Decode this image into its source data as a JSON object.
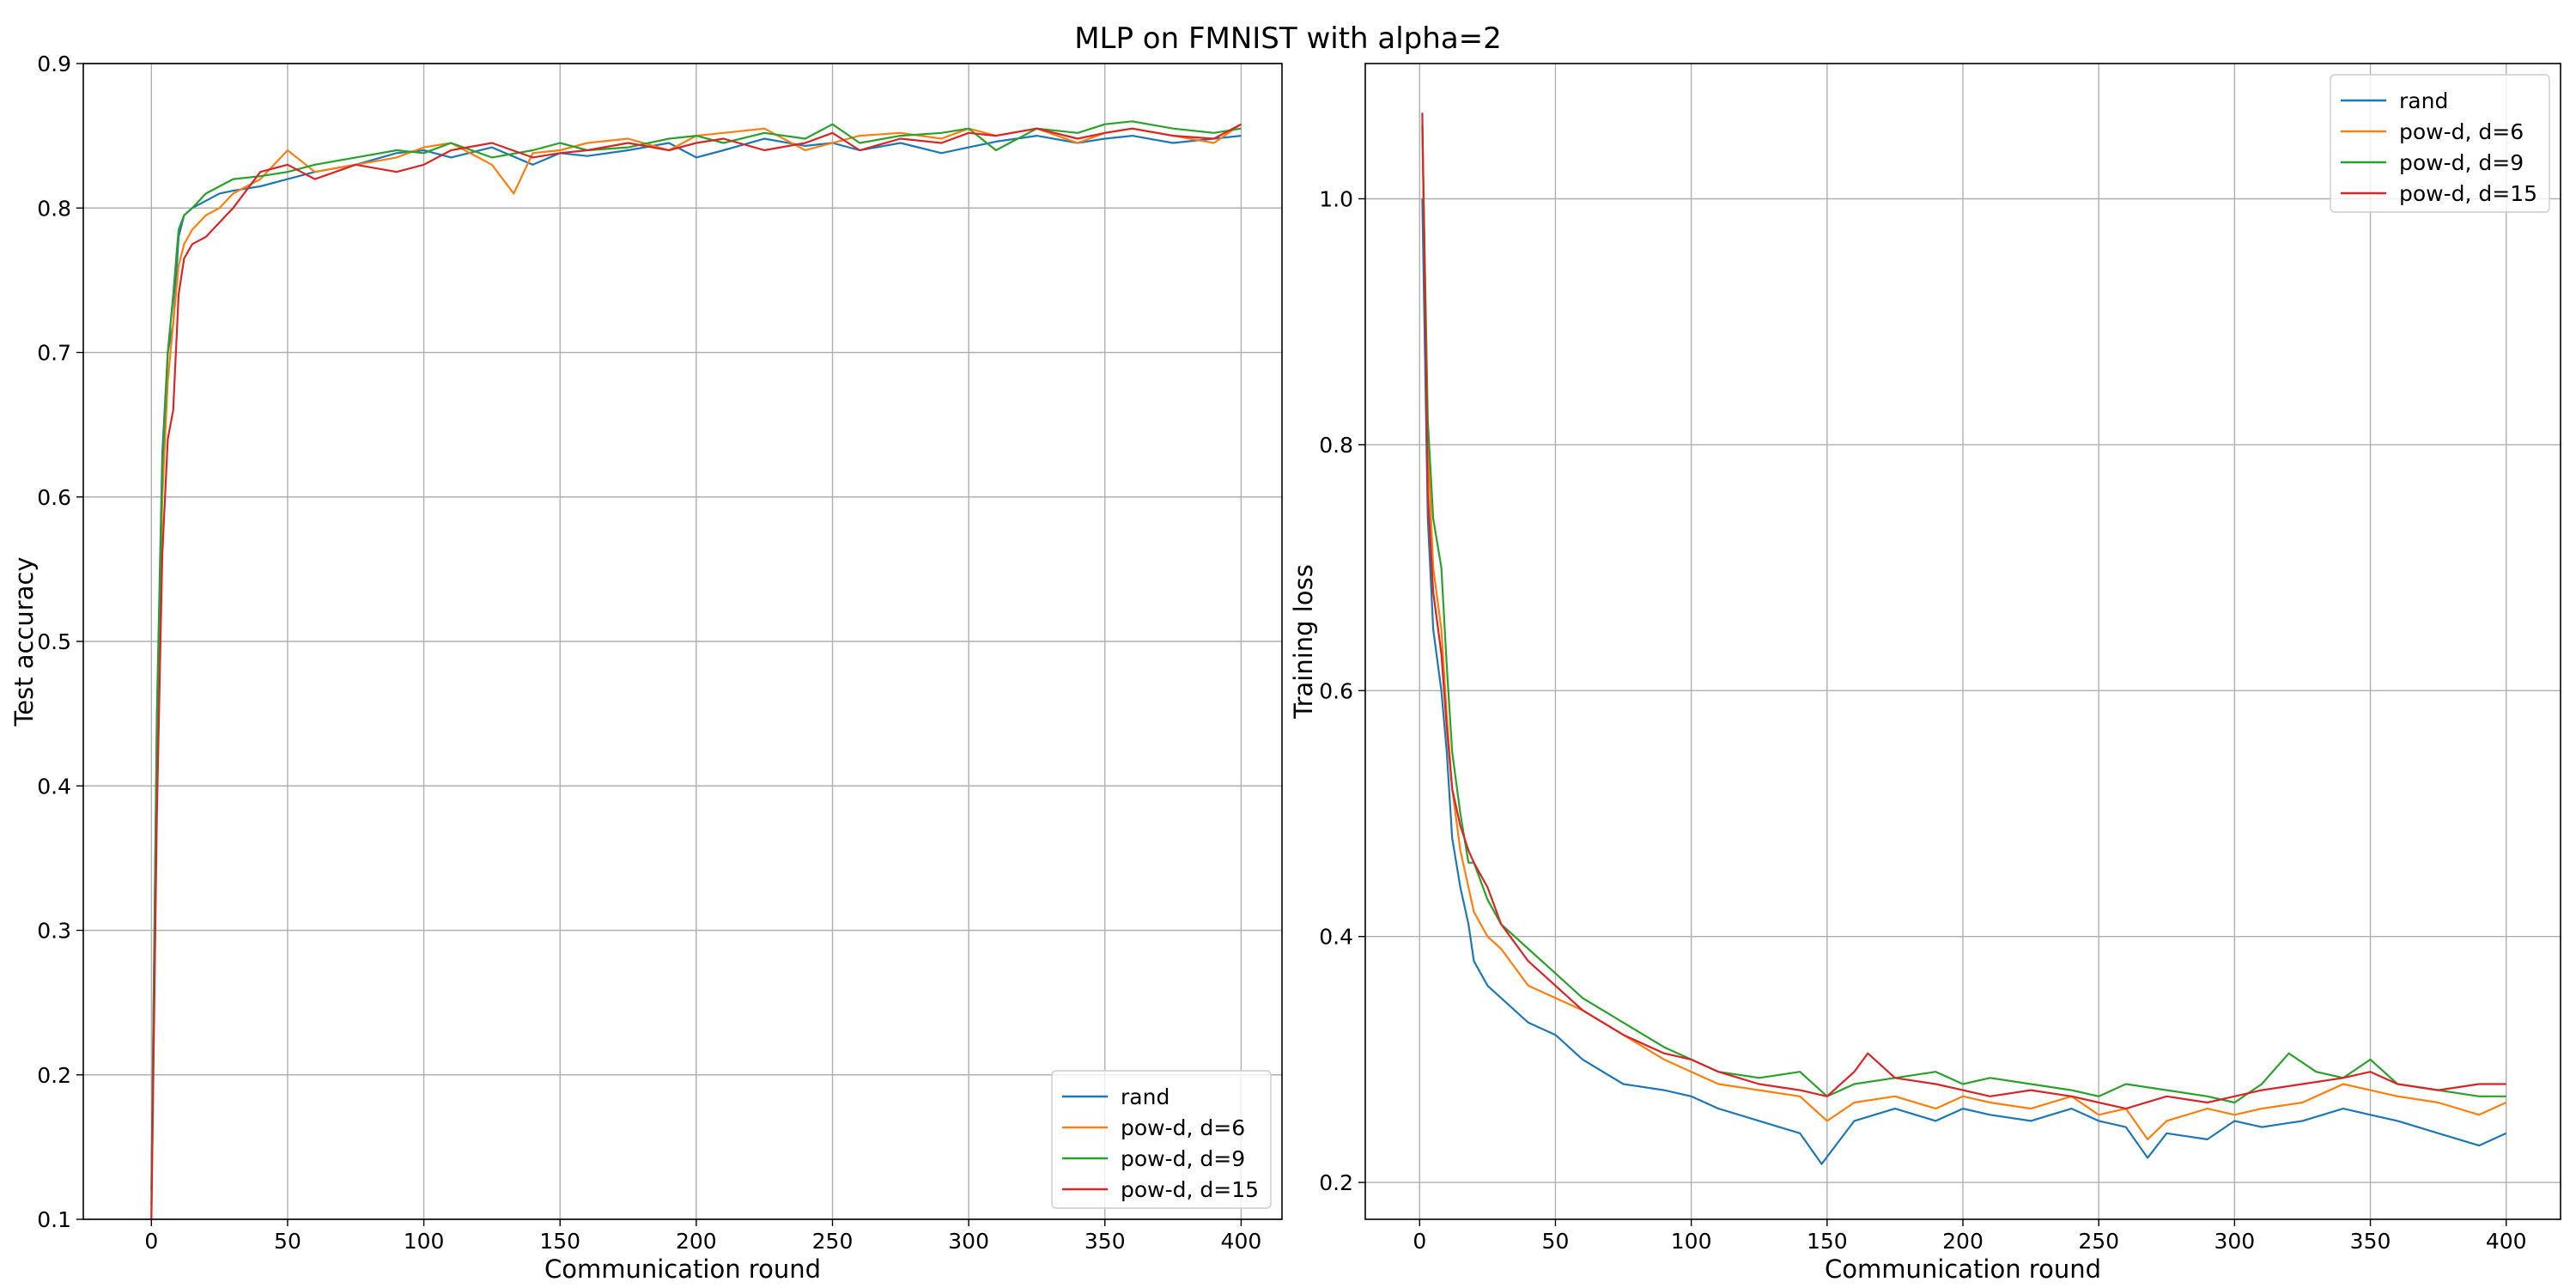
{
  "figure_title": "MLP on FMNIST with alpha=2",
  "colors": {
    "rand": "#1f77b4",
    "pow_d_6": "#ff7f0e",
    "pow_d_9": "#2ca02c",
    "pow_d_15": "#d62728"
  },
  "chart_data": [
    {
      "type": "line",
      "title": "",
      "xlabel": "Communication round",
      "ylabel": "Test accuracy",
      "xlim": [
        -25,
        415
      ],
      "ylim": [
        0.1,
        0.9
      ],
      "xticks": [
        0,
        50,
        100,
        150,
        200,
        250,
        300,
        350,
        400
      ],
      "yticks": [
        0.1,
        0.2,
        0.3,
        0.4,
        0.5,
        0.6,
        0.7,
        0.8,
        0.9
      ],
      "ytick_labels": [
        "0.1",
        "0.2",
        "0.3",
        "0.4",
        "0.5",
        "0.6",
        "0.7",
        "0.8",
        "0.9"
      ],
      "grid": true,
      "legend_position": "lower-right",
      "series": [
        {
          "name": "rand",
          "color": "#1f77b4",
          "x": [
            0,
            2,
            4,
            6,
            8,
            10,
            12,
            15,
            20,
            25,
            30,
            40,
            50,
            60,
            75,
            90,
            100,
            110,
            125,
            140,
            150,
            160,
            175,
            190,
            200,
            210,
            225,
            240,
            250,
            260,
            275,
            290,
            300,
            310,
            325,
            340,
            350,
            360,
            375,
            390,
            400
          ],
          "y": [
            0.12,
            0.45,
            0.63,
            0.7,
            0.72,
            0.78,
            0.795,
            0.8,
            0.805,
            0.81,
            0.812,
            0.815,
            0.82,
            0.825,
            0.83,
            0.838,
            0.84,
            0.835,
            0.842,
            0.83,
            0.838,
            0.836,
            0.84,
            0.845,
            0.835,
            0.84,
            0.848,
            0.843,
            0.845,
            0.84,
            0.845,
            0.838,
            0.842,
            0.846,
            0.85,
            0.845,
            0.848,
            0.85,
            0.845,
            0.848,
            0.85
          ]
        },
        {
          "name": "pow-d, d=6",
          "color": "#ff7f0e",
          "x": [
            0,
            2,
            4,
            6,
            8,
            10,
            12,
            15,
            20,
            25,
            30,
            40,
            50,
            60,
            75,
            90,
            100,
            110,
            125,
            133,
            140,
            150,
            160,
            175,
            190,
            200,
            210,
            225,
            240,
            250,
            260,
            275,
            290,
            300,
            310,
            325,
            340,
            350,
            360,
            375,
            390,
            400
          ],
          "y": [
            0.1,
            0.42,
            0.6,
            0.68,
            0.72,
            0.76,
            0.775,
            0.785,
            0.795,
            0.8,
            0.81,
            0.82,
            0.84,
            0.825,
            0.83,
            0.835,
            0.842,
            0.845,
            0.83,
            0.81,
            0.838,
            0.84,
            0.845,
            0.848,
            0.84,
            0.85,
            0.852,
            0.855,
            0.84,
            0.845,
            0.85,
            0.852,
            0.848,
            0.855,
            0.85,
            0.855,
            0.845,
            0.852,
            0.855,
            0.85,
            0.845,
            0.858
          ]
        },
        {
          "name": "pow-d, d=9",
          "color": "#2ca02c",
          "x": [
            0,
            2,
            4,
            6,
            8,
            10,
            12,
            15,
            20,
            25,
            30,
            40,
            50,
            60,
            75,
            90,
            100,
            110,
            125,
            140,
            150,
            160,
            175,
            190,
            200,
            210,
            225,
            240,
            250,
            260,
            275,
            290,
            300,
            310,
            325,
            340,
            350,
            360,
            375,
            390,
            400
          ],
          "y": [
            0.11,
            0.44,
            0.62,
            0.7,
            0.74,
            0.785,
            0.795,
            0.8,
            0.81,
            0.815,
            0.82,
            0.822,
            0.825,
            0.83,
            0.835,
            0.84,
            0.838,
            0.845,
            0.835,
            0.84,
            0.845,
            0.84,
            0.842,
            0.848,
            0.85,
            0.845,
            0.852,
            0.848,
            0.858,
            0.845,
            0.85,
            0.852,
            0.855,
            0.84,
            0.855,
            0.852,
            0.858,
            0.86,
            0.855,
            0.852,
            0.855
          ]
        },
        {
          "name": "pow-d, d=15",
          "color": "#d62728",
          "x": [
            0,
            2,
            4,
            6,
            8,
            10,
            12,
            15,
            20,
            25,
            30,
            40,
            50,
            60,
            75,
            90,
            100,
            110,
            125,
            140,
            150,
            160,
            175,
            190,
            200,
            210,
            225,
            240,
            250,
            260,
            275,
            290,
            300,
            310,
            325,
            340,
            350,
            360,
            375,
            390,
            400
          ],
          "y": [
            0.1,
            0.38,
            0.56,
            0.64,
            0.66,
            0.74,
            0.765,
            0.775,
            0.78,
            0.79,
            0.8,
            0.825,
            0.83,
            0.82,
            0.83,
            0.825,
            0.83,
            0.84,
            0.845,
            0.835,
            0.838,
            0.84,
            0.845,
            0.84,
            0.845,
            0.848,
            0.84,
            0.845,
            0.852,
            0.84,
            0.848,
            0.845,
            0.852,
            0.85,
            0.855,
            0.848,
            0.852,
            0.855,
            0.85,
            0.848,
            0.858
          ]
        }
      ]
    },
    {
      "type": "line",
      "title": "",
      "xlabel": "Communication round",
      "ylabel": "Training loss",
      "xlim": [
        -20,
        420
      ],
      "ylim": [
        0.17,
        1.11
      ],
      "xticks": [
        0,
        50,
        100,
        150,
        200,
        250,
        300,
        350,
        400
      ],
      "yticks": [
        0.2,
        0.4,
        0.6,
        0.8,
        1.0
      ],
      "ytick_labels": [
        "0.2",
        "0.4",
        "0.6",
        "0.8",
        "1.0"
      ],
      "grid": true,
      "legend_position": "top-right",
      "series": [
        {
          "name": "rand",
          "color": "#1f77b4",
          "x": [
            1,
            3,
            5,
            8,
            10,
            12,
            15,
            18,
            20,
            25,
            30,
            40,
            50,
            60,
            75,
            90,
            100,
            110,
            125,
            140,
            148,
            160,
            175,
            190,
            200,
            210,
            225,
            240,
            250,
            260,
            268,
            275,
            290,
            300,
            310,
            325,
            340,
            350,
            360,
            375,
            390,
            400
          ],
          "y": [
            1.0,
            0.74,
            0.65,
            0.6,
            0.55,
            0.48,
            0.44,
            0.41,
            0.38,
            0.36,
            0.35,
            0.33,
            0.32,
            0.3,
            0.28,
            0.275,
            0.27,
            0.26,
            0.25,
            0.24,
            0.215,
            0.25,
            0.26,
            0.25,
            0.26,
            0.255,
            0.25,
            0.26,
            0.25,
            0.245,
            0.22,
            0.24,
            0.235,
            0.25,
            0.245,
            0.25,
            0.26,
            0.255,
            0.25,
            0.24,
            0.23,
            0.24
          ]
        },
        {
          "name": "pow-d, d=6",
          "color": "#ff7f0e",
          "x": [
            1,
            3,
            5,
            8,
            10,
            12,
            15,
            18,
            20,
            25,
            30,
            40,
            50,
            60,
            75,
            90,
            100,
            110,
            125,
            140,
            150,
            160,
            175,
            190,
            200,
            210,
            225,
            240,
            250,
            260,
            268,
            275,
            290,
            300,
            310,
            325,
            340,
            350,
            360,
            375,
            390,
            400
          ],
          "y": [
            1.06,
            0.8,
            0.7,
            0.65,
            0.58,
            0.52,
            0.47,
            0.44,
            0.42,
            0.4,
            0.39,
            0.36,
            0.35,
            0.34,
            0.32,
            0.3,
            0.29,
            0.28,
            0.275,
            0.27,
            0.25,
            0.265,
            0.27,
            0.26,
            0.27,
            0.265,
            0.26,
            0.27,
            0.255,
            0.26,
            0.235,
            0.25,
            0.26,
            0.255,
            0.26,
            0.265,
            0.28,
            0.275,
            0.27,
            0.265,
            0.255,
            0.265
          ]
        },
        {
          "name": "pow-d, d=9",
          "color": "#2ca02c",
          "x": [
            1,
            3,
            5,
            8,
            10,
            12,
            15,
            18,
            20,
            25,
            30,
            40,
            50,
            60,
            75,
            90,
            100,
            110,
            125,
            140,
            150,
            160,
            175,
            190,
            200,
            210,
            225,
            240,
            250,
            260,
            275,
            290,
            300,
            310,
            320,
            330,
            340,
            350,
            360,
            375,
            390,
            400
          ],
          "y": [
            1.06,
            0.82,
            0.74,
            0.7,
            0.62,
            0.55,
            0.5,
            0.46,
            0.46,
            0.43,
            0.41,
            0.39,
            0.37,
            0.35,
            0.33,
            0.31,
            0.3,
            0.29,
            0.285,
            0.29,
            0.27,
            0.28,
            0.285,
            0.29,
            0.28,
            0.285,
            0.28,
            0.275,
            0.27,
            0.28,
            0.275,
            0.27,
            0.265,
            0.28,
            0.305,
            0.29,
            0.285,
            0.3,
            0.28,
            0.275,
            0.27,
            0.27
          ]
        },
        {
          "name": "pow-d, d=15",
          "color": "#d62728",
          "x": [
            1,
            3,
            5,
            8,
            10,
            12,
            15,
            18,
            20,
            25,
            30,
            40,
            50,
            60,
            75,
            90,
            100,
            110,
            125,
            140,
            150,
            160,
            165,
            175,
            190,
            200,
            210,
            225,
            240,
            250,
            260,
            275,
            290,
            300,
            310,
            325,
            340,
            350,
            360,
            375,
            390,
            400
          ],
          "y": [
            1.07,
            0.76,
            0.68,
            0.63,
            0.57,
            0.52,
            0.49,
            0.47,
            0.46,
            0.44,
            0.41,
            0.38,
            0.36,
            0.34,
            0.32,
            0.305,
            0.3,
            0.29,
            0.28,
            0.275,
            0.27,
            0.29,
            0.305,
            0.285,
            0.28,
            0.275,
            0.27,
            0.275,
            0.27,
            0.265,
            0.26,
            0.27,
            0.265,
            0.27,
            0.275,
            0.28,
            0.285,
            0.29,
            0.28,
            0.275,
            0.28,
            0.28
          ]
        }
      ]
    }
  ]
}
